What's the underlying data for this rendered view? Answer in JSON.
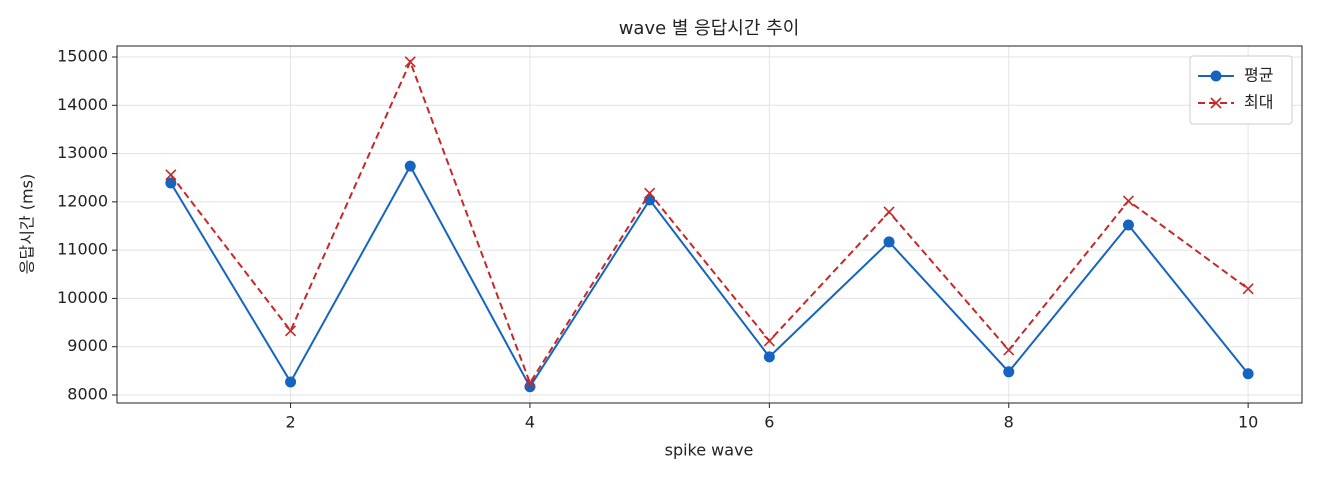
{
  "chart_data": {
    "type": "line",
    "title": "wave 별 응답시간 추이",
    "xlabel": "spike wave",
    "ylabel": "응답시간 (ms)",
    "x": [
      1,
      2,
      3,
      4,
      5,
      6,
      7,
      8,
      9,
      10
    ],
    "series": [
      {
        "name": "평균",
        "color": "#1565c0",
        "marker": "o",
        "linestyle": "solid",
        "values": [
          12390,
          8270,
          12740,
          8170,
          12040,
          8790,
          11170,
          8480,
          11520,
          8440
        ]
      },
      {
        "name": "최대",
        "color": "#c62828",
        "marker": "x",
        "linestyle": "dashed",
        "values": [
          12560,
          9330,
          14900,
          8250,
          12180,
          9120,
          11790,
          8930,
          12020,
          10200
        ]
      }
    ],
    "xlim": [
      0.55,
      10.45
    ],
    "xticks": [
      2,
      4,
      6,
      8,
      10
    ],
    "ylim": [
      7834,
      15228
    ],
    "yticks": [
      8000,
      9000,
      10000,
      11000,
      12000,
      13000,
      14000,
      15000
    ],
    "grid": true,
    "legend": "upper right"
  }
}
